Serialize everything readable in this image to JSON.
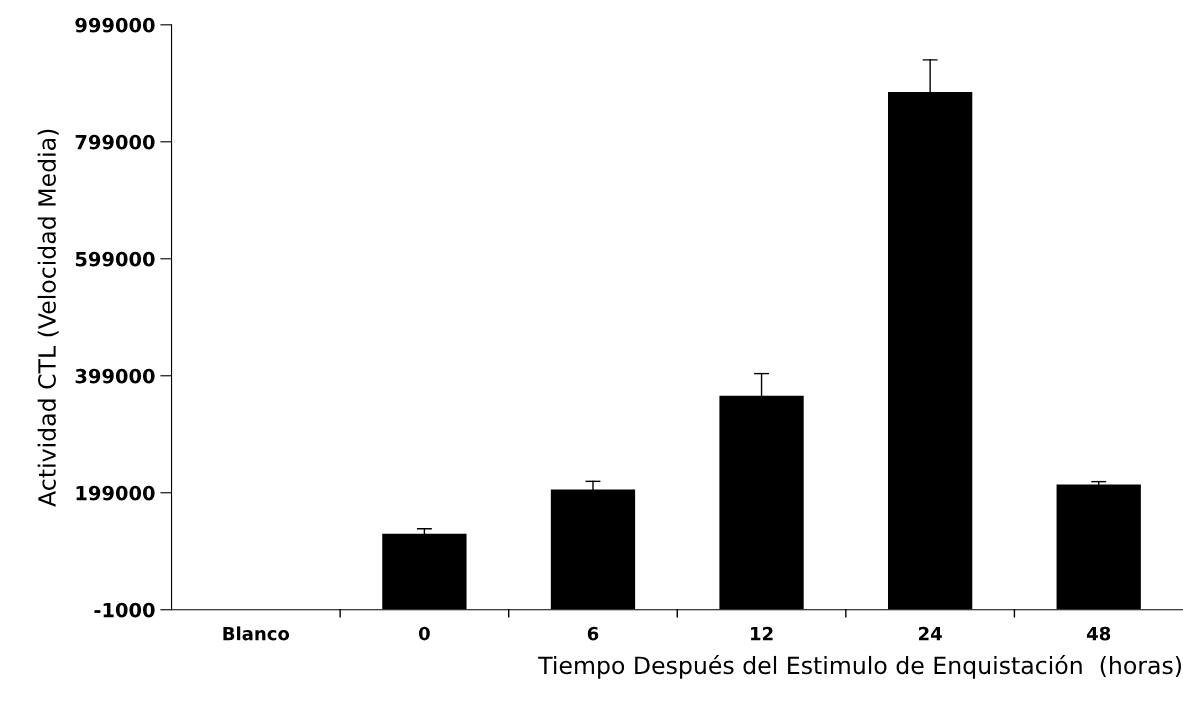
{
  "chart_data": {
    "type": "bar",
    "xlabel": "Tiempo Después del Estimulo de Enquistación  (horas)",
    "ylabel": "Actividad CTL (Velocidad Media)",
    "categories": [
      "Blanco",
      "0",
      "6",
      "12",
      "24",
      "48"
    ],
    "values": [
      0,
      129000,
      204500,
      365000,
      884000,
      213000
    ],
    "errors": [
      null,
      [
        129000,
        137500
      ],
      [
        204500,
        218500
      ],
      [
        365000,
        402700
      ],
      [
        884000,
        939000
      ],
      [
        213000,
        218000
      ]
    ],
    "color": "#000000",
    "ylim": [
      -1000,
      999000
    ],
    "yticks": [
      -1000,
      199000,
      399000,
      599000,
      799000,
      999000
    ],
    "grid": false,
    "legend": false
  }
}
